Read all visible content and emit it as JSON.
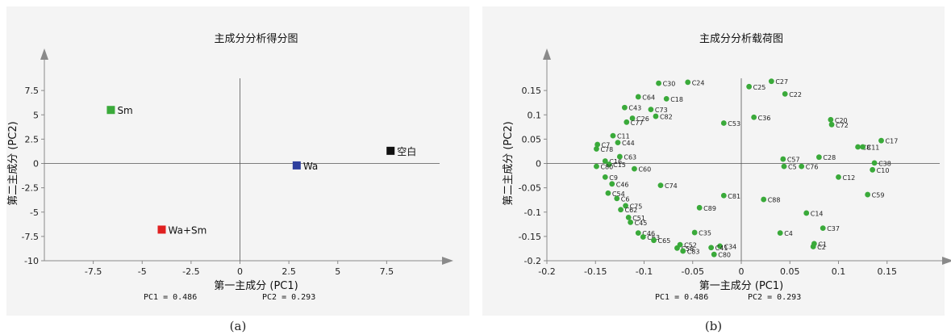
{
  "chart_data": [
    {
      "type": "scatter",
      "title": "主成分分析得分图",
      "xlabel": "第一主成分 (PC1)",
      "ylabel": "第二主成分 (PC2)",
      "xlim": [
        -10,
        10
      ],
      "ylim": [
        -10,
        10
      ],
      "xticks": [
        -7.5,
        -5,
        -2.5,
        0,
        2.5,
        5,
        7.5
      ],
      "xtick_labels": [
        "-7.5",
        "-5",
        "-2.5",
        "0",
        "2.5",
        "5",
        "7.5"
      ],
      "yticks": [
        7.5,
        5,
        2.5,
        0,
        -2.5,
        -5,
        -7.5,
        -10
      ],
      "ytick_labels": [
        "7.5",
        "5",
        "2.5",
        "0",
        "-2.5",
        "-5",
        "-7.5",
        "-10"
      ],
      "note_pc1": "PC1 = 0.486",
      "note_pc2": "PC2 = 0.293",
      "caption": "(a)",
      "points": [
        {
          "label": "Sm",
          "x": -6.6,
          "y": 5.5,
          "color": "#3aaa3a"
        },
        {
          "label": "Wa",
          "x": 2.9,
          "y": -0.2,
          "color": "#2e3f9e"
        },
        {
          "label": "空白",
          "x": 7.7,
          "y": 1.3,
          "color": "#111111"
        },
        {
          "label": "Wa+Sm",
          "x": -4.0,
          "y": -6.8,
          "color": "#e02020"
        }
      ]
    },
    {
      "type": "scatter",
      "title": "主成分分析载荷图",
      "xlabel": "第一主成分 (PC1)",
      "ylabel": "第二主成分 (PC2)",
      "xlim": [
        -0.2,
        0.2
      ],
      "ylim": [
        -0.2,
        0.2
      ],
      "xticks": [
        -0.2,
        -0.15,
        -0.1,
        -0.05,
        0,
        0.05,
        0.1,
        0.15
      ],
      "xtick_labels": [
        "-0.2",
        "-0.15",
        "-0.1",
        "-0.05",
        "0",
        "0.05",
        "0.1",
        "0.15"
      ],
      "yticks": [
        0.15,
        0.1,
        0.05,
        0,
        -0.05,
        -0.1,
        -0.15,
        -0.2
      ],
      "ytick_labels": [
        "0.15",
        "0.1",
        "0.05",
        "0",
        "-0.05",
        "-0.1",
        "-0.15",
        "-0.2"
      ],
      "note_pc1": "PC1 = 0.486",
      "note_pc2": "PC2 = 0.293",
      "caption": "(b)",
      "color": "#3aaa3a",
      "points": [
        {
          "label": "C27",
          "x": 0.031,
          "y": 0.169
        },
        {
          "label": "C25",
          "x": 0.008,
          "y": 0.158
        },
        {
          "label": "C22",
          "x": 0.045,
          "y": 0.143
        },
        {
          "label": "C30",
          "x": -0.085,
          "y": 0.165
        },
        {
          "label": "C24",
          "x": -0.055,
          "y": 0.167
        },
        {
          "label": "C64",
          "x": -0.106,
          "y": 0.137
        },
        {
          "label": "C18",
          "x": -0.077,
          "y": 0.133
        },
        {
          "label": "C43",
          "x": -0.12,
          "y": 0.115
        },
        {
          "label": "C73",
          "x": -0.093,
          "y": 0.111
        },
        {
          "label": "C82",
          "x": -0.088,
          "y": 0.097
        },
        {
          "label": "C26",
          "x": -0.112,
          "y": 0.093
        },
        {
          "label": "C77",
          "x": -0.118,
          "y": 0.085
        },
        {
          "label": "C53",
          "x": -0.018,
          "y": 0.083
        },
        {
          "label": "C36",
          "x": 0.013,
          "y": 0.095
        },
        {
          "label": "C20",
          "x": 0.092,
          "y": 0.09
        },
        {
          "label": "C72",
          "x": 0.093,
          "y": 0.08
        },
        {
          "label": "C17",
          "x": 0.144,
          "y": 0.047
        },
        {
          "label": "C11",
          "x": -0.132,
          "y": 0.057
        },
        {
          "label": "C44",
          "x": -0.127,
          "y": 0.043
        },
        {
          "label": "C7",
          "x": -0.148,
          "y": 0.039
        },
        {
          "label": "C78",
          "x": -0.149,
          "y": 0.03
        },
        {
          "label": "C63",
          "x": -0.125,
          "y": 0.014
        },
        {
          "label": "C16",
          "x": -0.14,
          "y": 0.005
        },
        {
          "label": "C15",
          "x": -0.136,
          "y": -0.002
        },
        {
          "label": "C80",
          "x": -0.149,
          "y": -0.006
        },
        {
          "label": "C60",
          "x": -0.11,
          "y": -0.011
        },
        {
          "label": "C9",
          "x": -0.14,
          "y": -0.028
        },
        {
          "label": "C46",
          "x": -0.133,
          "y": -0.042
        },
        {
          "label": "C74",
          "x": -0.083,
          "y": -0.045
        },
        {
          "label": "C54",
          "x": -0.137,
          "y": -0.061
        },
        {
          "label": "C6",
          "x": -0.128,
          "y": -0.072
        },
        {
          "label": "C75",
          "x": -0.119,
          "y": -0.087
        },
        {
          "label": "C62",
          "x": -0.124,
          "y": -0.095
        },
        {
          "label": "C81",
          "x": -0.018,
          "y": -0.066
        },
        {
          "label": "C88",
          "x": 0.023,
          "y": -0.074
        },
        {
          "label": "C89",
          "x": -0.043,
          "y": -0.091
        },
        {
          "label": "C51",
          "x": -0.116,
          "y": -0.111
        },
        {
          "label": "C45",
          "x": -0.114,
          "y": -0.121
        },
        {
          "label": "C46",
          "x": -0.106,
          "y": -0.143
        },
        {
          "label": "C63",
          "x": -0.101,
          "y": -0.151
        },
        {
          "label": "C65",
          "x": -0.09,
          "y": -0.158
        },
        {
          "label": "C35",
          "x": -0.048,
          "y": -0.142
        },
        {
          "label": "C52",
          "x": -0.063,
          "y": -0.167
        },
        {
          "label": "C58",
          "x": -0.066,
          "y": -0.174
        },
        {
          "label": "C83",
          "x": -0.06,
          "y": -0.18
        },
        {
          "label": "C34",
          "x": -0.022,
          "y": -0.17
        },
        {
          "label": "C41",
          "x": -0.031,
          "y": -0.173
        },
        {
          "label": "C80",
          "x": -0.028,
          "y": -0.187
        },
        {
          "label": "C4",
          "x": 0.04,
          "y": -0.143
        },
        {
          "label": "C1",
          "x": 0.075,
          "y": -0.165
        },
        {
          "label": "C2",
          "x": 0.074,
          "y": -0.171
        },
        {
          "label": "C14",
          "x": 0.067,
          "y": -0.102
        },
        {
          "label": "C37",
          "x": 0.084,
          "y": -0.133
        },
        {
          "label": "C59",
          "x": 0.13,
          "y": -0.064
        },
        {
          "label": "C12",
          "x": 0.1,
          "y": -0.028
        },
        {
          "label": "C10",
          "x": 0.135,
          "y": -0.013
        },
        {
          "label": "C38",
          "x": 0.137,
          "y": 0.001
        },
        {
          "label": "C76",
          "x": 0.062,
          "y": -0.006
        },
        {
          "label": "C5",
          "x": 0.044,
          "y": -0.006
        },
        {
          "label": "C57",
          "x": 0.043,
          "y": 0.009
        },
        {
          "label": "C28",
          "x": 0.08,
          "y": 0.013
        },
        {
          "label": "C8",
          "x": 0.12,
          "y": 0.034
        },
        {
          "label": "C11",
          "x": 0.125,
          "y": 0.034
        }
      ]
    }
  ]
}
